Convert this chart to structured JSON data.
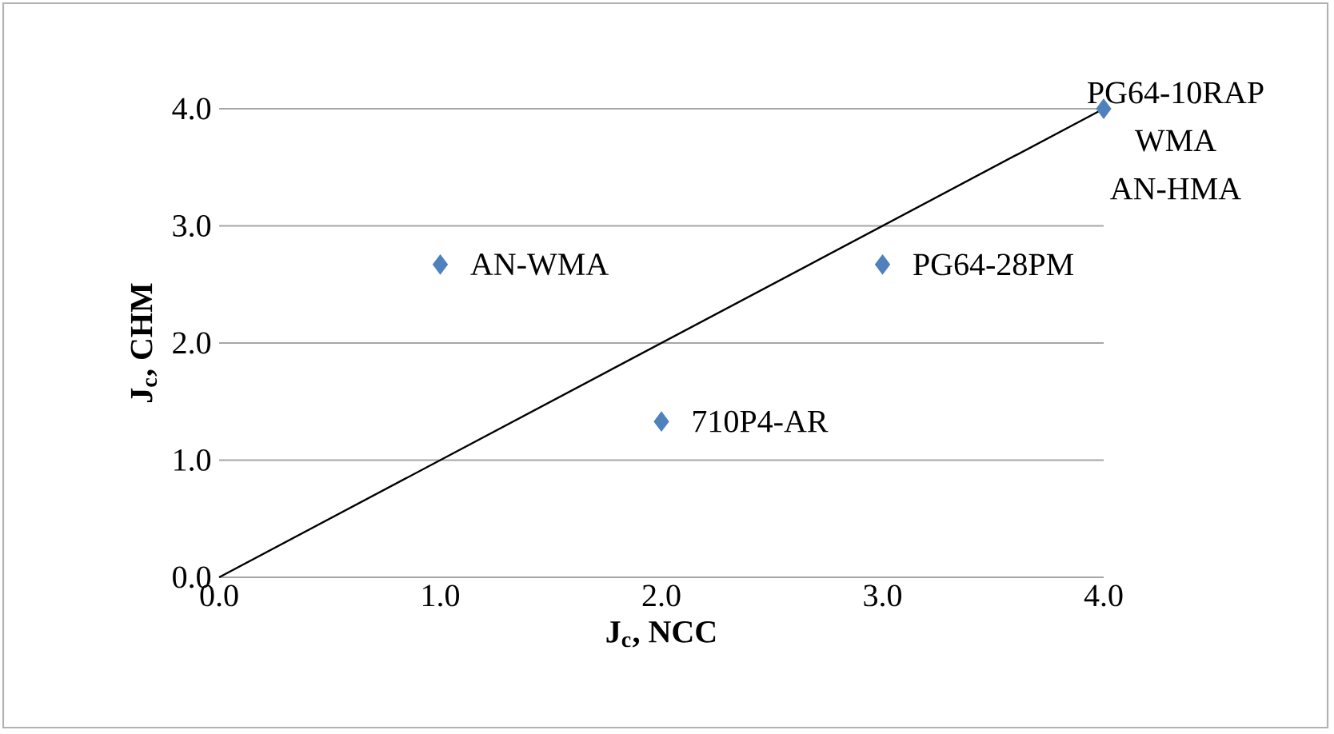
{
  "chart_data": {
    "type": "scatter",
    "xlabel": "J$_{c}$, NCC",
    "ylabel": "J$_{c}$, CHM",
    "series": [
      {
        "color": "#4f81bd",
        "marker": "diamond",
        "x": [
          1,
          2,
          3,
          4
        ],
        "values": [
          2.67,
          1.33,
          2.67,
          4.0
        ]
      },
      {
        "type": "line",
        "color": "#000000",
        "marker": "none",
        "x": [
          0,
          4
        ],
        "values": [
          0,
          4
        ]
      }
    ],
    "annotations": [
      {
        "text": "AN-WMA",
        "x": 1,
        "y": 2.67
      },
      {
        "text": "710P4-AR",
        "x": 2,
        "y": 1.33
      },
      {
        "text": "PG64-28PM",
        "x": 3,
        "y": 2.67
      },
      {
        "text": "PG64-10RAP",
        "x": 4,
        "y": 4.0
      },
      {
        "text": "WMA",
        "x": 4,
        "y": 4.0
      },
      {
        "text": "AN-HMA",
        "x": 4,
        "y": 4.0
      }
    ],
    "xlim": [
      0,
      4
    ],
    "ylim": [
      0,
      4
    ],
    "xticks": [
      {
        "value": 0,
        "label": "0.0"
      },
      {
        "value": 1,
        "label": "1.0"
      },
      {
        "value": 2,
        "label": "2.0"
      },
      {
        "value": 3,
        "label": "3.0"
      },
      {
        "value": 4,
        "label": "4.0"
      }
    ],
    "yticks": [
      {
        "value": 0,
        "label": "0.0"
      },
      {
        "value": 1,
        "label": "1.0"
      },
      {
        "value": 2,
        "label": "2.0"
      },
      {
        "value": 3,
        "label": "3.0"
      },
      {
        "value": 4,
        "label": "4.0"
      }
    ],
    "grid": "y"
  }
}
